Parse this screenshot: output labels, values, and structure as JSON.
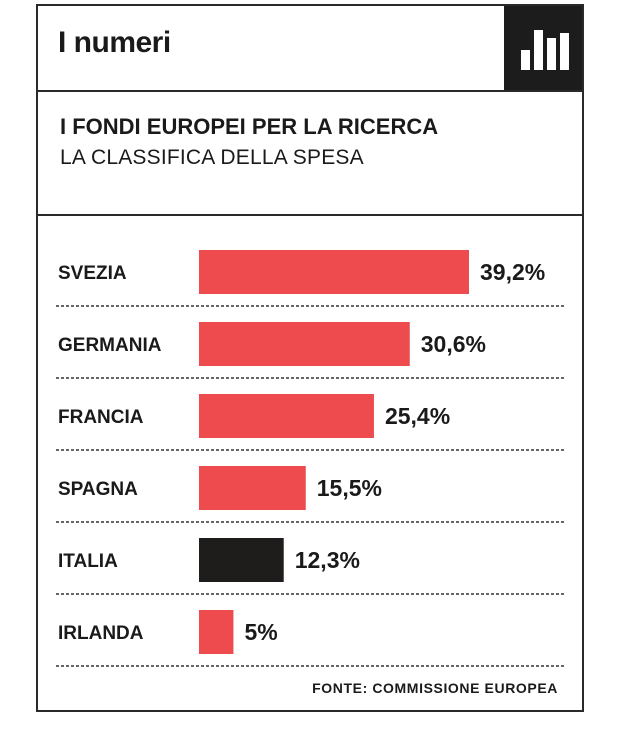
{
  "header": {
    "title": "I numeri",
    "icon": "bar-chart-icon"
  },
  "subtitle": {
    "line1": "I FONDI EUROPEI PER LA RICERCA",
    "line2": "LA CLASSIFICA DELLA SPESA"
  },
  "source": "FONTE: COMMISSIONE EUROPEA",
  "colors": {
    "bar": "#ee4b4f",
    "highlight": "#1f1c1c",
    "text": "#1a1a1a"
  },
  "chart_data": {
    "type": "bar",
    "orientation": "horizontal",
    "title": "I FONDI EUROPEI PER LA RICERCA",
    "subtitle": "LA CLASSIFICA DELLA SPESA",
    "categories": [
      "SVEZIA",
      "GERMANIA",
      "FRANCIA",
      "SPAGNA",
      "ITALIA",
      "IRLANDA"
    ],
    "values": [
      39.2,
      30.6,
      25.4,
      15.5,
      12.3,
      5
    ],
    "labels": [
      "39,2%",
      "30,6%",
      "25,4%",
      "15,5%",
      "12,3%",
      "5%"
    ],
    "highlight": "ITALIA",
    "unit": "%",
    "xlim": [
      0,
      39.2
    ],
    "grid": false
  }
}
